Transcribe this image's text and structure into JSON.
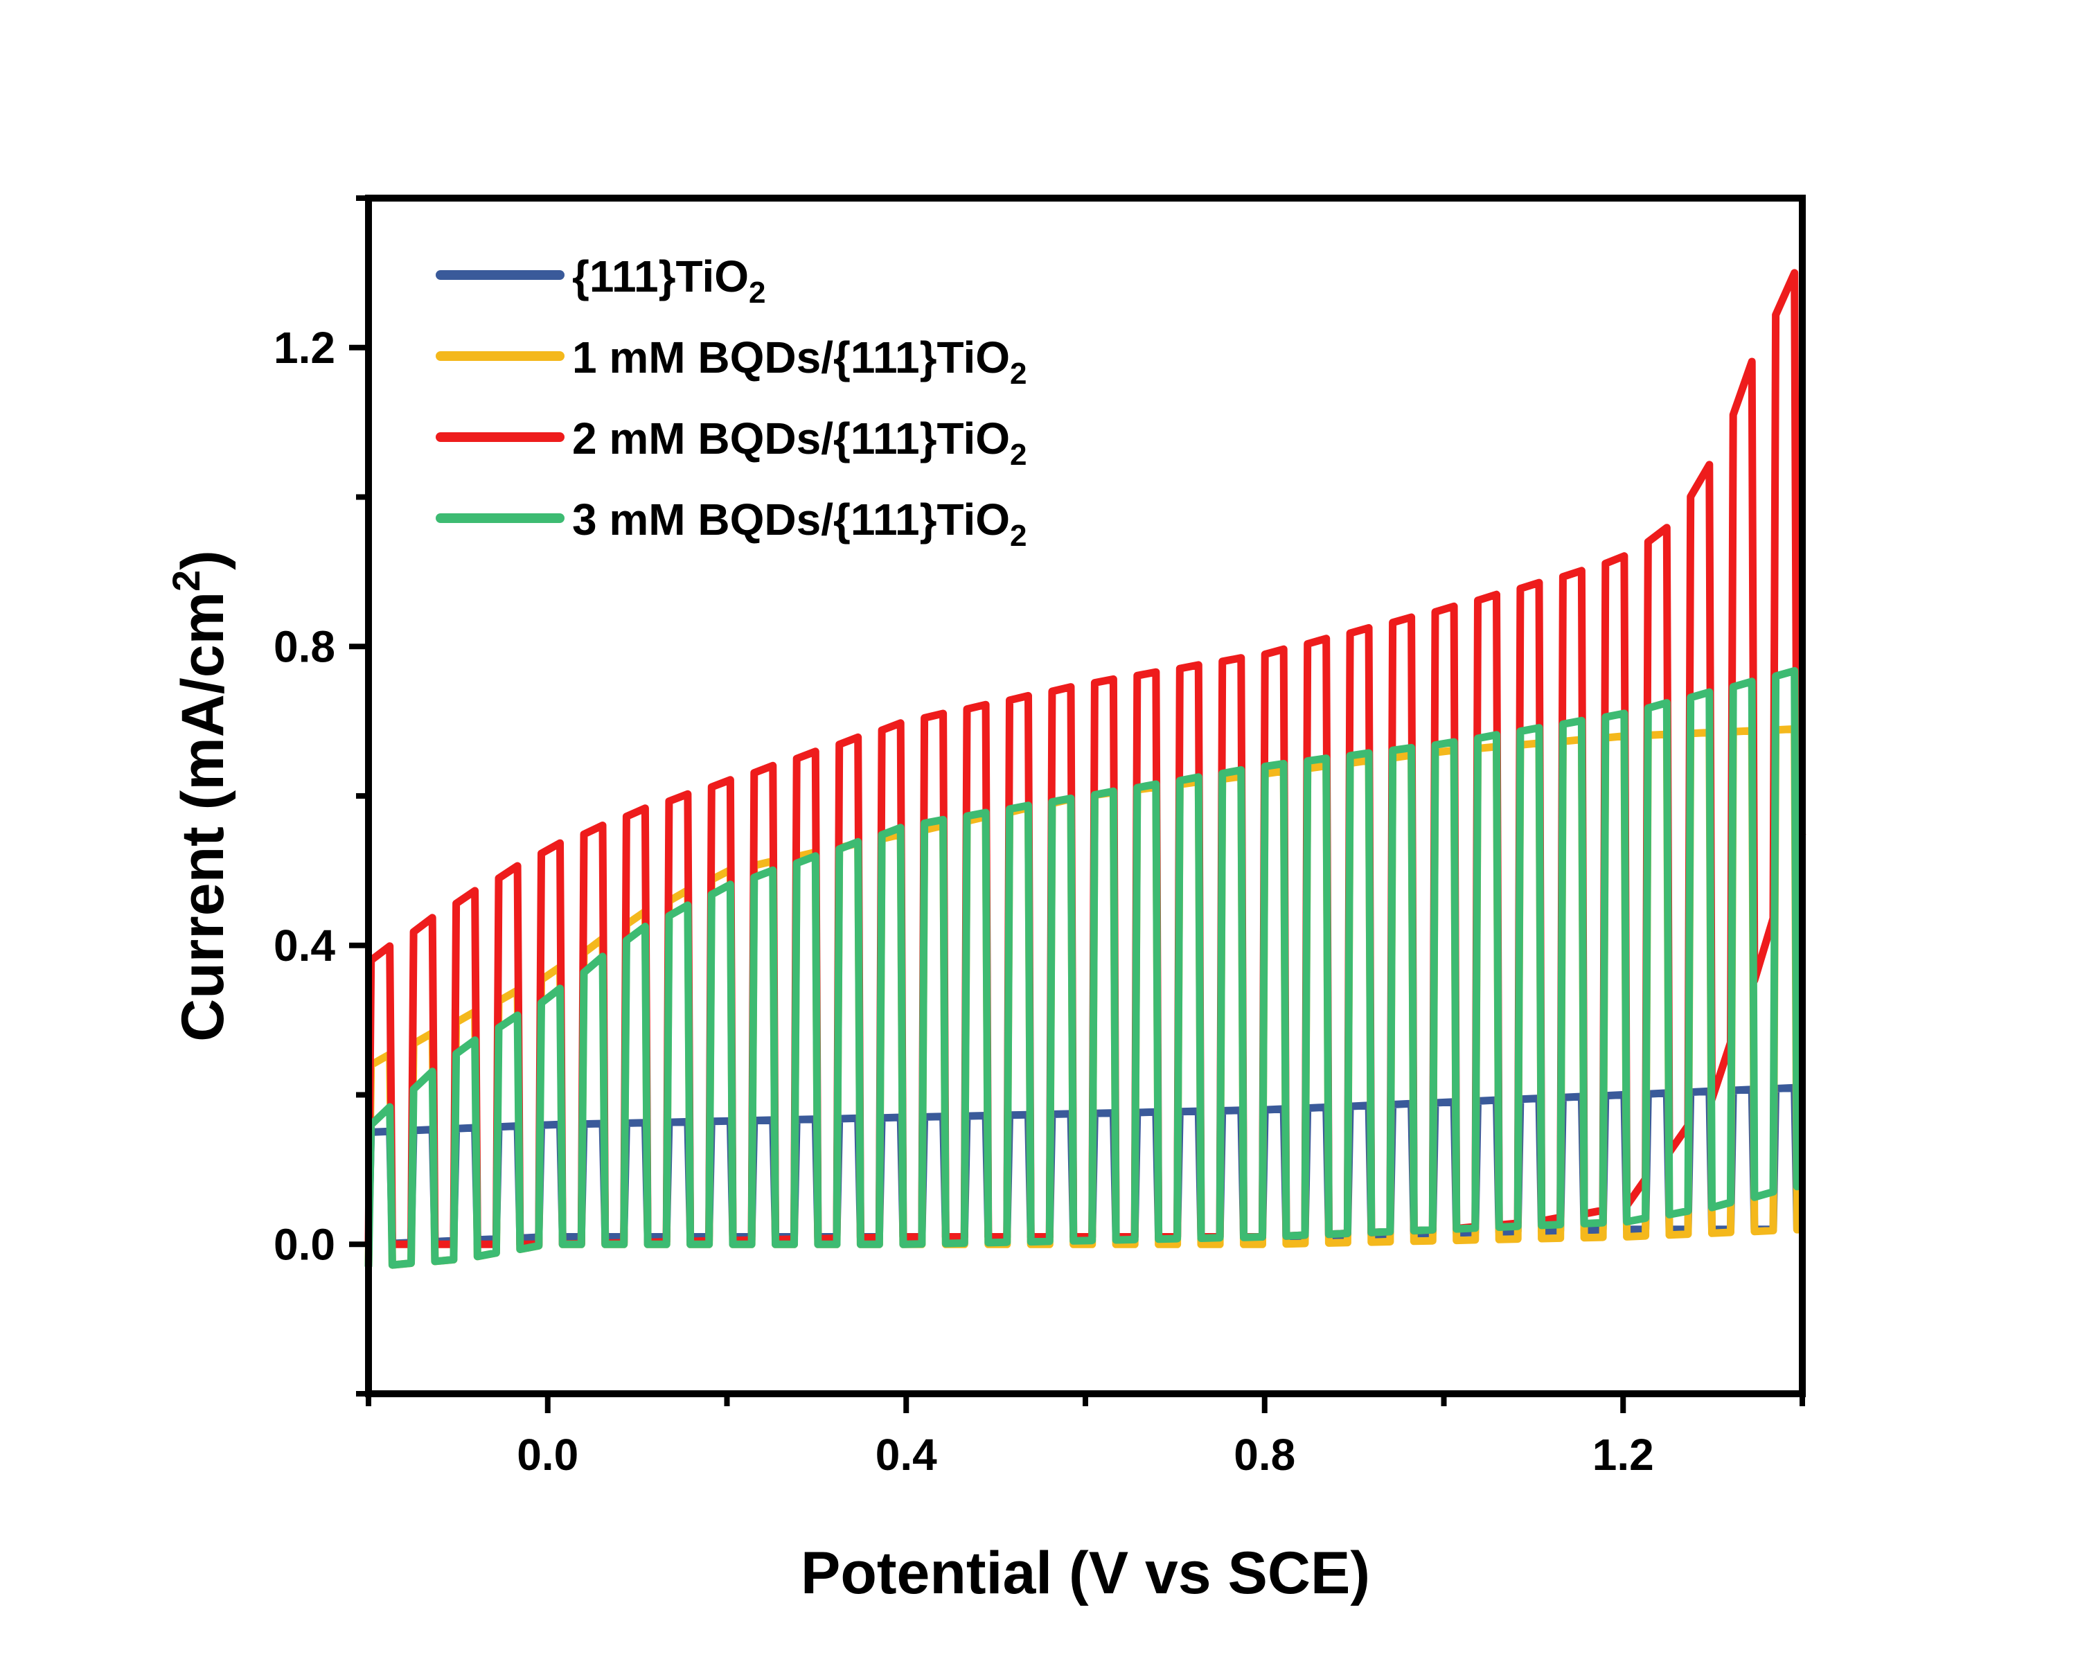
{
  "chart_data": {
    "type": "line",
    "xlabel": "Potential (V vs SCE)",
    "ylabel": {
      "base": "Current (mA/cm",
      "sup": "2",
      "tail": ")"
    },
    "xlim": [
      -0.2,
      1.4
    ],
    "ylim": [
      -0.2,
      1.4
    ],
    "xticks": [
      0.0,
      0.4,
      0.8,
      1.2
    ],
    "xtick_labels": [
      "0.0",
      "0.4",
      "0.8",
      "1.2"
    ],
    "yticks": [
      0.0,
      0.4,
      0.8,
      1.2
    ],
    "ytick_labels": [
      "0.0",
      "0.4",
      "0.8",
      "1.2"
    ],
    "minor_xticks": [
      -0.2,
      0.2,
      0.6,
      1.0,
      1.4
    ],
    "minor_yticks": [
      -0.2,
      0.2,
      0.6,
      1.0,
      1.4
    ],
    "grid": false,
    "legend_position": "top-left",
    "chopping": {
      "start_v": -0.2,
      "end_v": 1.4,
      "period_v": 0.0475,
      "light_fraction": 0.5
    },
    "series": [
      {
        "name": "{111}TiO₂",
        "label": {
          "base": "{111}TiO",
          "sub": "2"
        },
        "color": "#3a5a9a",
        "light_current": {
          "x": [
            -0.2,
            0.0,
            0.4,
            0.8,
            1.2,
            1.4
          ],
          "y": [
            0.15,
            0.16,
            0.17,
            0.18,
            0.2,
            0.21
          ]
        },
        "dark_current": {
          "x": [
            -0.2,
            0.0,
            0.4,
            0.8,
            1.2,
            1.4
          ],
          "y": [
            0.0,
            0.01,
            0.01,
            0.01,
            0.02,
            0.02
          ]
        }
      },
      {
        "name": "1 mM BQDs/{111}TiO₂",
        "label": {
          "base": "1 mM BQDs/{111}TiO",
          "sub": "2"
        },
        "color": "#f4b81c",
        "light_current": {
          "x": [
            -0.2,
            -0.1,
            0.0,
            0.1,
            0.2,
            0.4,
            0.6,
            0.8,
            1.0,
            1.2,
            1.4
          ],
          "y": [
            0.24,
            0.3,
            0.36,
            0.44,
            0.5,
            0.55,
            0.6,
            0.63,
            0.66,
            0.68,
            0.69
          ]
        },
        "dark_current": {
          "x": [
            -0.2,
            -0.1,
            0.0,
            0.4,
            0.8,
            1.2,
            1.4
          ],
          "y": [
            -0.03,
            -0.02,
            0.0,
            0.0,
            0.0,
            0.01,
            0.02
          ]
        }
      },
      {
        "name": "2 mM BQDs/{111}TiO₂",
        "label": {
          "base": "2 mM BQDs/{111}TiO",
          "sub": "2"
        },
        "color": "#ee1c1c",
        "light_current": {
          "x": [
            -0.2,
            -0.1,
            0.0,
            0.1,
            0.2,
            0.4,
            0.6,
            0.8,
            1.0,
            1.15,
            1.2,
            1.25,
            1.3,
            1.35,
            1.39
          ],
          "y": [
            0.38,
            0.46,
            0.53,
            0.58,
            0.62,
            0.7,
            0.75,
            0.79,
            0.85,
            0.9,
            0.92,
            0.96,
            1.05,
            1.2,
            1.3
          ]
        },
        "dark_current": {
          "x": [
            -0.2,
            0.0,
            0.4,
            0.8,
            1.0,
            1.1,
            1.2,
            1.3,
            1.4
          ],
          "y": [
            0.0,
            0.0,
            0.01,
            0.01,
            0.02,
            0.03,
            0.05,
            0.2,
            0.55
          ]
        }
      },
      {
        "name": "3 mM BQDs/{111}TiO₂",
        "label": {
          "base": "3 mM BQDs/{111}TiO",
          "sub": "2"
        },
        "color": "#3dbb72",
        "light_current": {
          "x": [
            -0.2,
            -0.1,
            0.0,
            0.1,
            0.2,
            0.4,
            0.6,
            0.8,
            1.0,
            1.2,
            1.3,
            1.4
          ],
          "y": [
            0.16,
            0.26,
            0.33,
            0.42,
            0.48,
            0.56,
            0.6,
            0.64,
            0.67,
            0.71,
            0.74,
            0.77
          ]
        },
        "dark_current": {
          "x": [
            -0.2,
            -0.1,
            0.0,
            0.4,
            0.8,
            1.2,
            1.3,
            1.4
          ],
          "y": [
            -0.03,
            -0.02,
            0.0,
            0.0,
            0.01,
            0.03,
            0.05,
            0.08
          ]
        }
      }
    ]
  }
}
